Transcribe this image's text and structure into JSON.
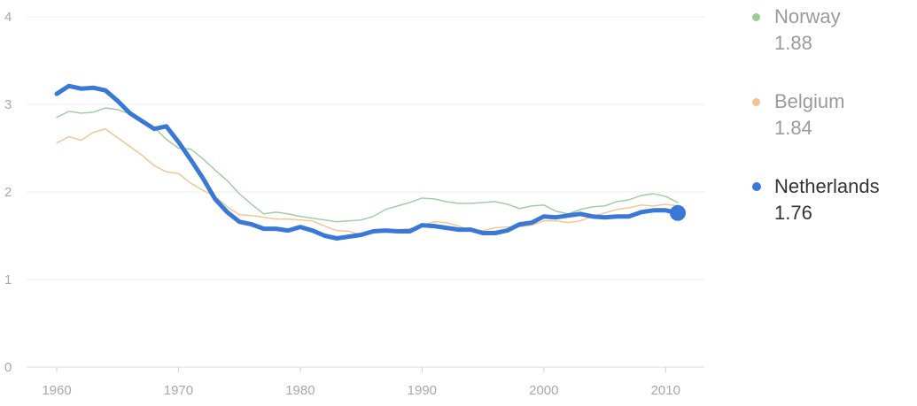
{
  "chart_data": {
    "type": "line",
    "xlim": [
      1960,
      2011
    ],
    "ylim": [
      0,
      4
    ],
    "x_ticks": [
      1960,
      1970,
      1980,
      1990,
      2000,
      2010
    ],
    "y_ticks": [
      0,
      1,
      2,
      3,
      4
    ],
    "grid": "horizontal",
    "legend_position": "right",
    "x": [
      1960,
      1961,
      1962,
      1963,
      1964,
      1965,
      1966,
      1967,
      1968,
      1969,
      1970,
      1971,
      1972,
      1973,
      1974,
      1975,
      1976,
      1977,
      1978,
      1979,
      1980,
      1981,
      1982,
      1983,
      1984,
      1985,
      1986,
      1987,
      1988,
      1989,
      1990,
      1991,
      1992,
      1993,
      1994,
      1995,
      1996,
      1997,
      1998,
      1999,
      2000,
      2001,
      2002,
      2003,
      2004,
      2005,
      2006,
      2007,
      2008,
      2009,
      2010,
      2011
    ],
    "series": [
      {
        "name": "Norway",
        "latest_value": "1.88",
        "color": "#9ccc9c",
        "values": [
          2.85,
          2.92,
          2.9,
          2.91,
          2.96,
          2.94,
          2.89,
          2.82,
          2.74,
          2.6,
          2.5,
          2.49,
          2.38,
          2.25,
          2.13,
          1.98,
          1.86,
          1.75,
          1.77,
          1.75,
          1.72,
          1.7,
          1.68,
          1.66,
          1.67,
          1.68,
          1.72,
          1.8,
          1.84,
          1.88,
          1.93,
          1.92,
          1.89,
          1.87,
          1.87,
          1.88,
          1.89,
          1.86,
          1.81,
          1.84,
          1.85,
          1.78,
          1.75,
          1.8,
          1.83,
          1.84,
          1.89,
          1.91,
          1.96,
          1.98,
          1.95,
          1.88
        ]
      },
      {
        "name": "Belgium",
        "latest_value": "1.84",
        "color": "#f2c38e",
        "values": [
          2.56,
          2.63,
          2.59,
          2.68,
          2.72,
          2.62,
          2.52,
          2.42,
          2.3,
          2.23,
          2.21,
          2.1,
          2.02,
          1.95,
          1.83,
          1.74,
          1.73,
          1.71,
          1.69,
          1.69,
          1.68,
          1.67,
          1.61,
          1.56,
          1.55,
          1.51,
          1.54,
          1.54,
          1.57,
          1.58,
          1.62,
          1.66,
          1.65,
          1.61,
          1.56,
          1.56,
          1.59,
          1.6,
          1.6,
          1.62,
          1.67,
          1.67,
          1.65,
          1.67,
          1.72,
          1.76,
          1.8,
          1.82,
          1.85,
          1.84,
          1.86,
          1.84
        ]
      },
      {
        "name": "Netherlands",
        "latest_value": "1.76",
        "color": "#3a78d8",
        "values": [
          3.12,
          3.21,
          3.18,
          3.19,
          3.16,
          3.04,
          2.9,
          2.81,
          2.72,
          2.75,
          2.57,
          2.37,
          2.16,
          1.92,
          1.77,
          1.66,
          1.63,
          1.58,
          1.58,
          1.56,
          1.6,
          1.56,
          1.5,
          1.47,
          1.49,
          1.51,
          1.55,
          1.56,
          1.55,
          1.55,
          1.62,
          1.61,
          1.59,
          1.57,
          1.57,
          1.53,
          1.53,
          1.56,
          1.63,
          1.65,
          1.72,
          1.71,
          1.73,
          1.75,
          1.72,
          1.71,
          1.72,
          1.72,
          1.77,
          1.79,
          1.79,
          1.76
        ]
      }
    ]
  },
  "legend": [
    {
      "name": "Norway",
      "value": "1.88"
    },
    {
      "name": "Belgium",
      "value": "1.84"
    },
    {
      "name": "Netherlands",
      "value": "1.76"
    }
  ]
}
